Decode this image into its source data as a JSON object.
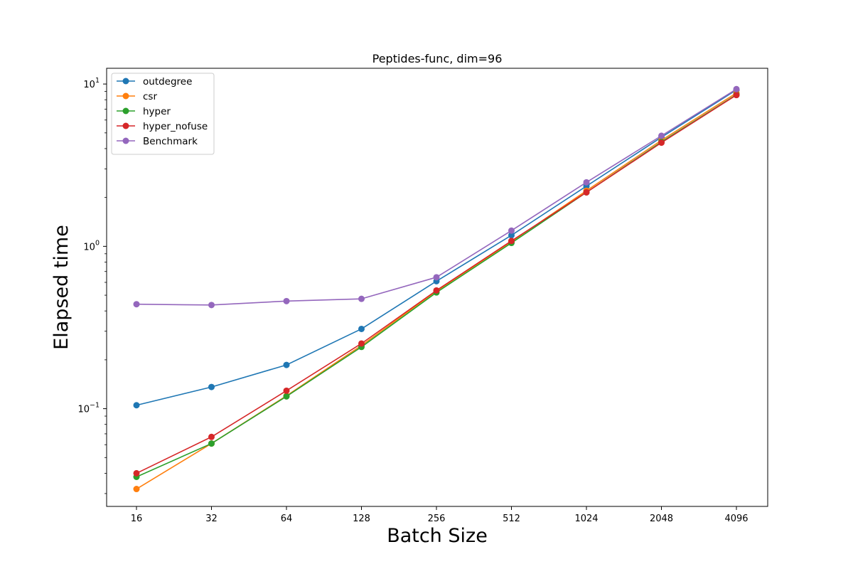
{
  "chart_data": {
    "type": "line",
    "title": "Peptides-func, dim=96",
    "xlabel": "Batch Size",
    "ylabel": "Elapsed time",
    "x_scale": "log2",
    "y_scale": "log10",
    "ylim": [
      0.025,
      12.5
    ],
    "categories": [
      "16",
      "32",
      "64",
      "128",
      "256",
      "512",
      "1024",
      "2048",
      "4096"
    ],
    "x": [
      16,
      32,
      64,
      128,
      256,
      512,
      1024,
      2048,
      4096
    ],
    "y_ticks": [
      {
        "value": 0.1,
        "base": "10",
        "exp": "−1"
      },
      {
        "value": 1,
        "base": "10",
        "exp": "0"
      },
      {
        "value": 10,
        "base": "10",
        "exp": "1"
      }
    ],
    "grid": false,
    "legend_position": "top-left",
    "series": [
      {
        "name": "outdegree",
        "color": "#1f77b4",
        "values": [
          0.105,
          0.136,
          0.186,
          0.31,
          0.61,
          1.17,
          2.35,
          4.7,
          9.2
        ]
      },
      {
        "name": "csr",
        "color": "#ff7f0e",
        "values": [
          0.032,
          0.061,
          0.12,
          0.245,
          0.53,
          1.07,
          2.2,
          4.5,
          8.8
        ]
      },
      {
        "name": "hyper",
        "color": "#2ca02c",
        "values": [
          0.038,
          0.061,
          0.119,
          0.24,
          0.52,
          1.05,
          2.15,
          4.4,
          8.6
        ]
      },
      {
        "name": "hyper_nofuse",
        "color": "#d62728",
        "values": [
          0.04,
          0.067,
          0.129,
          0.252,
          0.535,
          1.08,
          2.15,
          4.35,
          8.55
        ]
      },
      {
        "name": "Benchmark",
        "color": "#9467bd",
        "values": [
          0.44,
          0.435,
          0.46,
          0.475,
          0.645,
          1.25,
          2.48,
          4.8,
          9.3
        ]
      }
    ]
  }
}
